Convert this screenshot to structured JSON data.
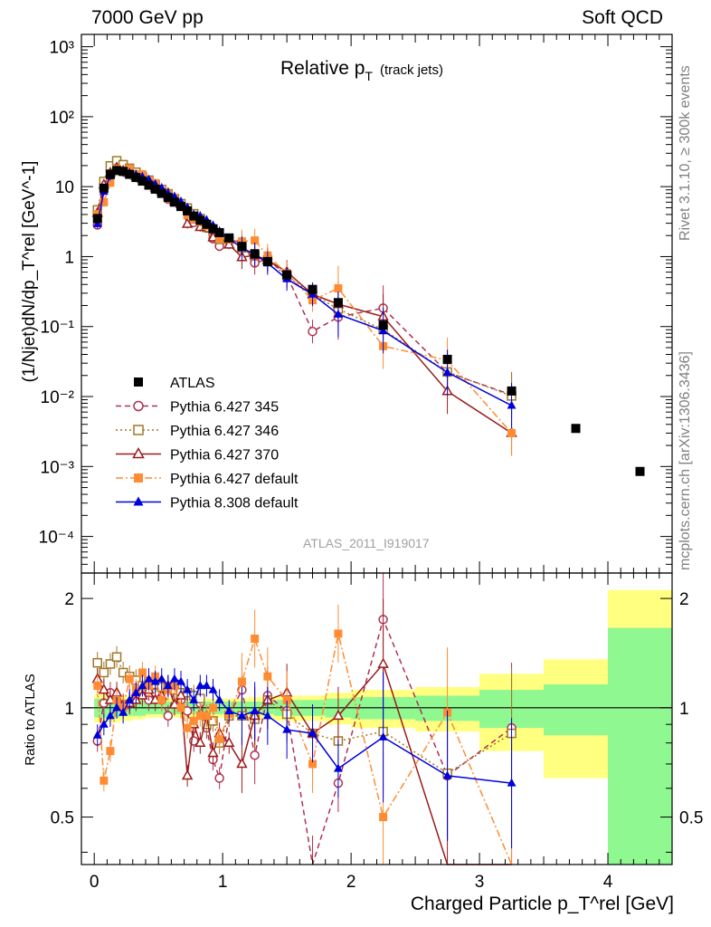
{
  "header": {
    "left": "7000 GeV pp",
    "right": "Soft QCD"
  },
  "sidebar": {
    "top": "Rivet 3.1.10, ≥ 300k events",
    "bottom": "mcplots.cern.ch [arXiv:1306.3436]"
  },
  "main_plot": {
    "title": "Relative p",
    "title_sub": "T",
    "title_suffix": "(track jets)",
    "ylabel": "(1/Njet)dN/dp_T^rel [GeV^-1]",
    "ytick_labels": [
      "10⁻⁴",
      "10⁻³",
      "10⁻²",
      "10⁻¹",
      "1",
      "10",
      "10²",
      "10³"
    ],
    "watermark": "ATLAS_2011_I919017"
  },
  "ratio_plot": {
    "ylabel": "Ratio to ATLAS",
    "ytick_labels": [
      "0.5",
      "1",
      "2"
    ]
  },
  "xaxis": {
    "label": "Charged Particle p_T^rel [GeV]",
    "tick_labels": [
      "0",
      "1",
      "2",
      "3",
      "4"
    ]
  },
  "legend": [
    {
      "label": "ATLAS",
      "color": "#000000",
      "marker": "square-filled"
    },
    {
      "label": "Pythia 6.427 345",
      "color": "#b03050",
      "marker": "circle-open",
      "dash": "dashed"
    },
    {
      "label": "Pythia 6.427 346",
      "color": "#a07828",
      "marker": "square-open",
      "dash": "dotted"
    },
    {
      "label": "Pythia 6.427 370",
      "color": "#9b1b1b",
      "marker": "triangle-open",
      "dash": "solid"
    },
    {
      "label": "Pythia 6.427 default",
      "color": "#ff8c33",
      "marker": "square-filled",
      "dash": "dashdot"
    },
    {
      "label": "Pythia 8.308 default",
      "color": "#0000dd",
      "marker": "triangle-filled",
      "dash": "solid"
    }
  ],
  "chart_data": {
    "type": "line",
    "title": "Relative p_T (track jets)",
    "xlabel": "Charged Particle p_T^rel [GeV]",
    "ylabel": "(1/Njet)dN/dp_T^rel [GeV^-1]",
    "xlim": [
      -0.1,
      4.5
    ],
    "ylim_main": [
      3e-05,
      1500
    ],
    "yscale_main": "log",
    "ylim_ratio": [
      0.37,
      2.35
    ],
    "yscale_ratio": "log",
    "legend_position": "bottom-left",
    "x": [
      0.025,
      0.075,
      0.125,
      0.175,
      0.225,
      0.275,
      0.325,
      0.375,
      0.425,
      0.475,
      0.525,
      0.575,
      0.625,
      0.675,
      0.725,
      0.775,
      0.825,
      0.875,
      0.925,
      0.975,
      1.05,
      1.15,
      1.25,
      1.35,
      1.5,
      1.7,
      1.9,
      2.25,
      2.75,
      3.25,
      3.75,
      4.25
    ],
    "reference": {
      "name": "ATLAS",
      "values": [
        3.5,
        9.5,
        15.0,
        17.0,
        16.5,
        15.0,
        13.5,
        12.0,
        10.5,
        9.2,
        8.0,
        7.0,
        6.0,
        5.2,
        4.5,
        3.8,
        3.3,
        2.9,
        2.5,
        2.2,
        1.85,
        1.4,
        1.1,
        0.85,
        0.55,
        0.34,
        0.22,
        0.105,
        0.034,
        0.012,
        0.0035,
        0.00085
      ],
      "ratio_band_x": [
        0.0,
        0.1,
        0.2,
        0.3,
        0.4,
        0.5,
        0.6,
        0.7,
        0.8,
        0.9,
        1.0,
        1.1,
        1.2,
        1.3,
        1.4,
        1.6,
        1.8,
        2.0,
        2.5,
        3.0,
        3.5,
        4.0,
        4.5
      ],
      "ratio_band_inner": [
        0.06,
        0.06,
        0.05,
        0.05,
        0.04,
        0.04,
        0.04,
        0.04,
        0.04,
        0.04,
        0.04,
        0.04,
        0.04,
        0.04,
        0.05,
        0.05,
        0.06,
        0.07,
        0.08,
        0.12,
        0.16,
        0.66
      ],
      "ratio_band_outer": [
        0.09,
        0.09,
        0.08,
        0.07,
        0.06,
        0.06,
        0.06,
        0.06,
        0.06,
        0.06,
        0.06,
        0.06,
        0.07,
        0.07,
        0.08,
        0.08,
        0.1,
        0.12,
        0.14,
        0.24,
        0.36,
        1.11
      ]
    },
    "series": [
      {
        "name": "Pythia 6.427 345",
        "ratio": [
          0.81,
          1.03,
          1.1,
          1.05,
          1.0,
          1.03,
          1.08,
          1.12,
          1.05,
          1.1,
          1.05,
          0.95,
          1.12,
          1.05,
          0.98,
          0.81,
          1.03,
          0.88,
          0.72,
          0.64,
          0.95,
          1.12,
          0.74,
          1.08,
          0.98,
          0.25,
          0.62,
          1.75,
          0.65,
          0.88
        ]
      },
      {
        "name": "Pythia 6.427 346",
        "ratio": [
          1.33,
          1.25,
          1.32,
          1.38,
          1.25,
          1.22,
          1.19,
          1.15,
          1.18,
          1.16,
          1.14,
          1.13,
          1.12,
          1.1,
          1.1,
          1.08,
          1.06,
          0.9,
          0.92,
          0.8,
          0.95,
          0.95,
          0.93,
          1.05,
          0.96,
          0.85,
          0.81,
          0.86,
          0.66,
          0.85
        ]
      },
      {
        "name": "Pythia 6.427 370",
        "ratio": [
          1.2,
          1.12,
          1.05,
          1.1,
          1.02,
          1.03,
          1.05,
          1.08,
          1.12,
          1.05,
          1.08,
          1.15,
          1.02,
          1.08,
          0.65,
          0.9,
          0.8,
          0.95,
          0.75,
          0.85,
          0.8,
          0.7,
          0.95,
          1.05,
          1.1,
          0.85,
          0.95,
          1.32,
          0.35,
          0.25
        ]
      },
      {
        "name": "Pythia 6.427 default",
        "ratio": [
          1.15,
          0.63,
          0.76,
          1.05,
          1.0,
          1.2,
          1.12,
          1.25,
          1.15,
          1.22,
          1.05,
          1.12,
          1.15,
          1.0,
          0.88,
          0.92,
          0.95,
          0.95,
          1.0,
          0.82,
          0.96,
          1.18,
          1.55,
          1.22,
          1.05,
          0.7,
          1.6,
          0.5,
          0.97,
          0.25
        ]
      },
      {
        "name": "Pythia 8.308 default",
        "ratio": [
          0.84,
          0.9,
          0.95,
          1.0,
          0.97,
          1.05,
          1.1,
          1.15,
          1.2,
          1.18,
          1.2,
          1.15,
          1.2,
          1.18,
          1.12,
          1.05,
          1.15,
          1.15,
          1.12,
          1.05,
          0.98,
          0.95,
          0.98,
          0.95,
          0.87,
          0.85,
          0.68,
          0.83,
          0.65,
          0.62
        ]
      }
    ]
  }
}
